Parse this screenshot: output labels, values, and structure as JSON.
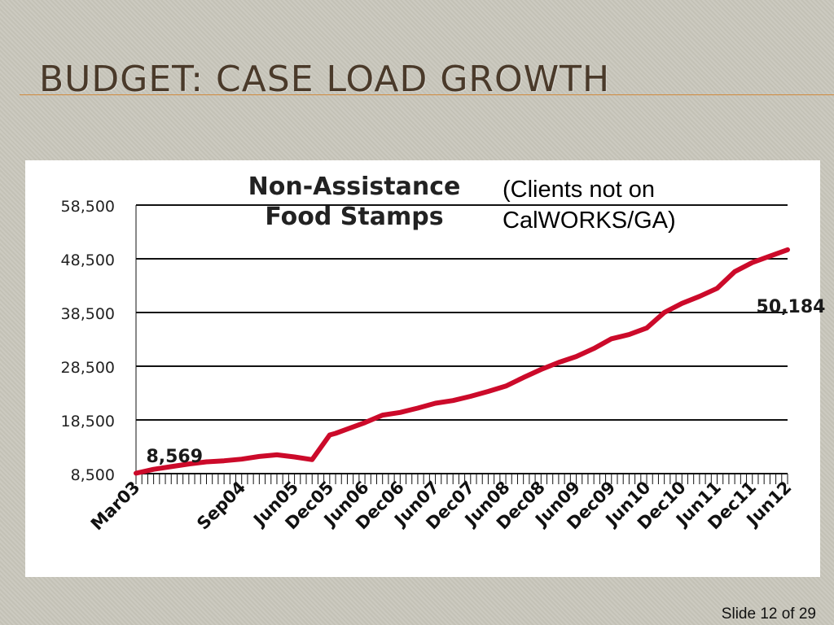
{
  "slide": {
    "title": "Budget: Case Load Growth",
    "number_label": "Slide 12 of 29",
    "accent_color": "#d08a3e",
    "title_color": "#4a3a2a"
  },
  "chart_note": {
    "line1": "(Clients not on",
    "line2": "CalWORKS/GA)"
  },
  "chart_data": {
    "type": "line",
    "title_lines": [
      "Non-Assistance",
      "Food Stamps"
    ],
    "xlabel": "",
    "ylabel": "",
    "ylim": [
      8500,
      58500
    ],
    "yticks": [
      8500,
      18500,
      28500,
      38500,
      48500,
      58500
    ],
    "ytick_labels": [
      "8,500",
      "18,500",
      "28,500",
      "38,500",
      "48,500",
      "58,500"
    ],
    "x_tick_labels": [
      "Mar03",
      "Sep04",
      "Jun05",
      "Dec05",
      "Jun06",
      "Dec06",
      "Jun07",
      "Dec07",
      "Jun08",
      "Dec08",
      "Jun09",
      "Dec09",
      "Jun10",
      "Dec10",
      "Jun11",
      "Dec11",
      "Jun12"
    ],
    "grid": true,
    "line_color": "#cc0a2a",
    "series": [
      {
        "x": [
          "Mar03",
          "Jun03",
          "Sep03",
          "Dec03",
          "Mar04",
          "Jun04",
          "Sep04",
          "Dec04",
          "Mar05",
          "Jun05",
          "Sep05",
          "Dec05",
          "Jan06",
          "Mar06",
          "Jun06",
          "Sep06",
          "Dec06",
          "Mar07",
          "Jun07",
          "Sep07",
          "Dec07",
          "Mar08",
          "Jun08",
          "Sep08",
          "Dec08",
          "Mar09",
          "Jun09",
          "Sep09",
          "Dec09",
          "Mar10",
          "Jun10",
          "Sep10",
          "Dec10",
          "Mar11",
          "Jun11",
          "Sep11",
          "Dec11",
          "Mar12",
          "Jun12"
        ],
        "values": [
          8569,
          9300,
          9800,
          10300,
          10700,
          10900,
          11200,
          11700,
          12000,
          11600,
          11100,
          15700,
          16000,
          16800,
          18000,
          19400,
          19900,
          20700,
          21600,
          22100,
          22900,
          23800,
          24800,
          26400,
          27900,
          29200,
          30300,
          31800,
          33600,
          34400,
          35600,
          38500,
          40200,
          41500,
          43000,
          46100,
          47800,
          49000,
          50184
        ]
      }
    ],
    "annotations": [
      {
        "text": "8,569",
        "x": "Sep03",
        "y": 10600
      },
      {
        "text": "50,184",
        "x": "Jun12",
        "y": 38500
      }
    ]
  }
}
